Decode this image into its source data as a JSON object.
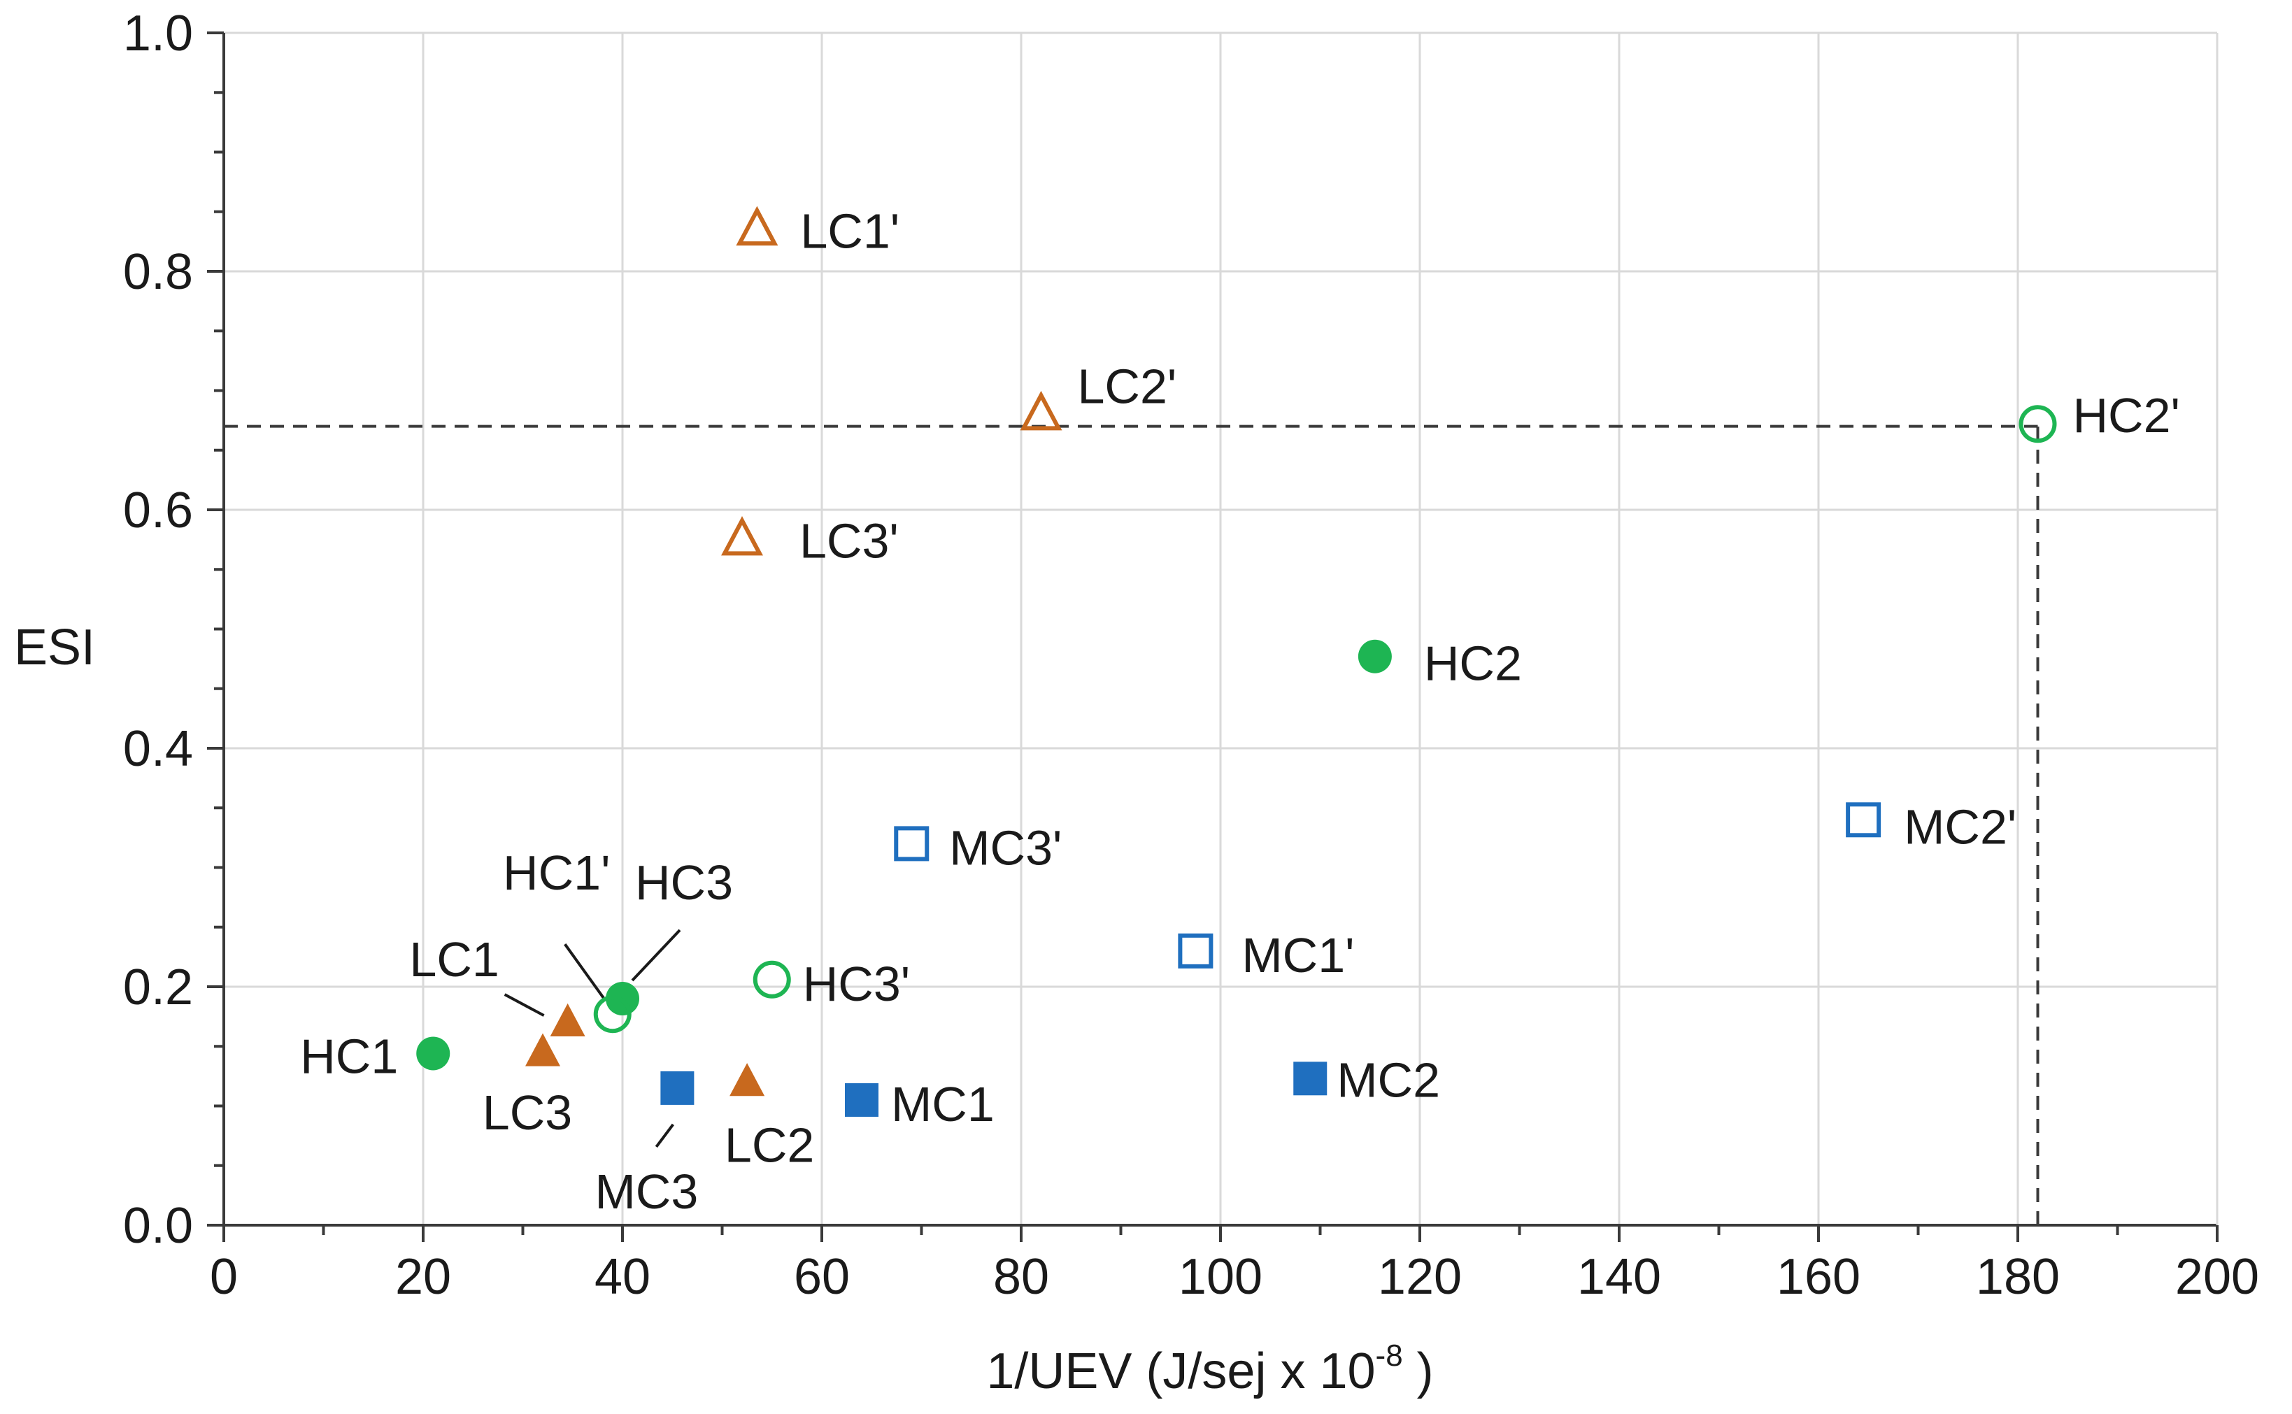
{
  "chart_data": {
    "type": "scatter",
    "title": "",
    "xlabel": "1/UEV (J/sej x 10",
    "xlabel_exponent": "-8",
    "xlabel_suffix": " )",
    "ylabel": "ESI",
    "xlim": [
      0,
      200
    ],
    "ylim": [
      0,
      1.0
    ],
    "x_ticks": [
      "0",
      "20",
      "40",
      "60",
      "80",
      "100",
      "120",
      "140",
      "160",
      "180",
      "200"
    ],
    "y_ticks": [
      "0.0",
      "0.2",
      "0.4",
      "0.6",
      "0.8",
      "1.0"
    ],
    "grid": true,
    "colors": {
      "LC": "#c8691e",
      "MC": "#1f6fbf",
      "HC": "#1eb553"
    },
    "points": [
      {
        "label": "LC1'",
        "x": 53.5,
        "y": 0.835,
        "shape": "triangle",
        "filled": false,
        "group": "LC"
      },
      {
        "label": "LC2'",
        "x": 82,
        "y": 0.68,
        "shape": "triangle",
        "filled": false,
        "group": "LC"
      },
      {
        "label": "LC3'",
        "x": 52,
        "y": 0.575,
        "shape": "triangle",
        "filled": false,
        "group": "LC"
      },
      {
        "label": "HC2'",
        "x": 182,
        "y": 0.672,
        "shape": "circle",
        "filled": false,
        "group": "HC"
      },
      {
        "label": "HC2",
        "x": 115.5,
        "y": 0.477,
        "shape": "circle",
        "filled": true,
        "group": "HC"
      },
      {
        "label": "MC2'",
        "x": 164.5,
        "y": 0.34,
        "shape": "square",
        "filled": false,
        "group": "MC"
      },
      {
        "label": "MC3'",
        "x": 69,
        "y": 0.32,
        "shape": "square",
        "filled": false,
        "group": "MC"
      },
      {
        "label": "MC1'",
        "x": 97.5,
        "y": 0.23,
        "shape": "square",
        "filled": false,
        "group": "MC"
      },
      {
        "label": "HC3'",
        "x": 55,
        "y": 0.206,
        "shape": "circle",
        "filled": false,
        "group": "HC"
      },
      {
        "label": "HC3",
        "x": 40,
        "y": 0.19,
        "shape": "circle",
        "filled": true,
        "group": "HC"
      },
      {
        "label": "HC1'",
        "x": 39,
        "y": 0.177,
        "shape": "circle",
        "filled": false,
        "group": "HC"
      },
      {
        "label": "LC1",
        "x": 34.5,
        "y": 0.17,
        "shape": "triangle",
        "filled": true,
        "group": "LC"
      },
      {
        "label": "HC1",
        "x": 21,
        "y": 0.144,
        "shape": "circle",
        "filled": true,
        "group": "HC"
      },
      {
        "label": "LC3",
        "x": 32,
        "y": 0.145,
        "shape": "triangle",
        "filled": true,
        "group": "LC"
      },
      {
        "label": "LC2",
        "x": 52.5,
        "y": 0.12,
        "shape": "triangle",
        "filled": true,
        "group": "LC"
      },
      {
        "label": "MC3",
        "x": 45.5,
        "y": 0.115,
        "shape": "square",
        "filled": true,
        "group": "MC"
      },
      {
        "label": "MC1",
        "x": 64,
        "y": 0.105,
        "shape": "square",
        "filled": true,
        "group": "MC"
      },
      {
        "label": "MC2",
        "x": 109,
        "y": 0.123,
        "shape": "square",
        "filled": true,
        "group": "MC"
      }
    ],
    "reference_lines": [
      {
        "type": "horizontal",
        "y": 0.67,
        "x_from": 0,
        "x_to": 182
      },
      {
        "type": "vertical",
        "x": 182,
        "y_from": 0,
        "y_to": 0.67
      }
    ]
  }
}
